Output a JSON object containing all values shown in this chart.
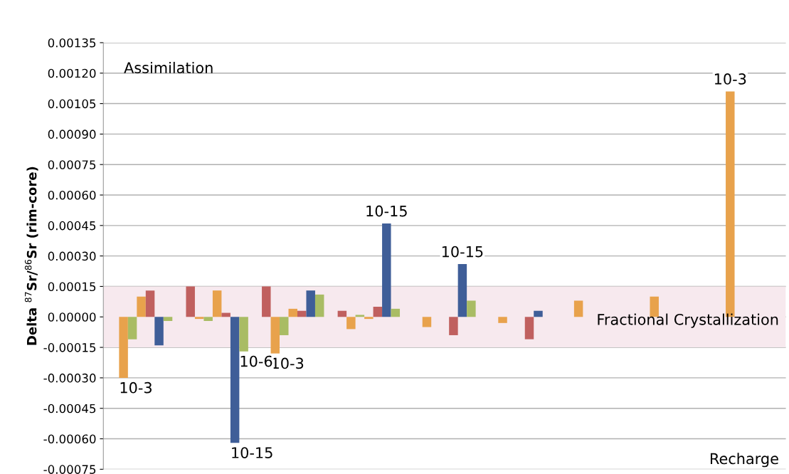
{
  "chart_data": {
    "type": "bar",
    "ylabel": "Delta $^{87}$Sr/$^{86}$Sr (rim-core)",
    "categories": [
      null,
      null,
      null,
      null,
      null,
      null,
      null,
      null,
      null
    ],
    "series": [
      {
        "color": "#c0605f",
        "values": [
          null,
          0.00015,
          0.00015,
          3e-05,
          null,
          null,
          null,
          null,
          null
        ]
      },
      {
        "color": "#e8a24c",
        "values": [
          -0.0003,
          -1e-05,
          -0.00018,
          -6e-05,
          -5e-05,
          -3e-05,
          8e-05,
          0.0001,
          0.00111
        ],
        "value_labels": [
          "10-3",
          null,
          "10-3",
          null,
          null,
          null,
          null,
          null,
          "10-3"
        ]
      },
      {
        "color": "#a9bc64",
        "values": [
          -0.00011,
          -2e-05,
          -9e-05,
          1e-05,
          null,
          null,
          null,
          null,
          null
        ]
      },
      {
        "color": "#e8a24c",
        "values": [
          0.0001,
          0.00013,
          4e-05,
          -1e-05,
          null,
          null,
          null,
          null,
          null
        ]
      },
      {
        "color": "#c0605f",
        "values": [
          0.00013,
          2e-05,
          3e-05,
          5e-05,
          -9e-05,
          -0.00011,
          null,
          null,
          null
        ]
      },
      {
        "color": "#3f5e98",
        "values": [
          -0.00014,
          -0.00062,
          0.00013,
          0.00046,
          0.00026,
          3e-05,
          null,
          null,
          null
        ],
        "value_labels": [
          null,
          "10-15",
          null,
          "10-15",
          "10-15",
          null,
          null,
          null,
          null
        ]
      },
      {
        "color": "#a9bc64",
        "values": [
          -2e-05,
          -0.00017,
          0.00011,
          4e-05,
          8e-05,
          null,
          null,
          null,
          null
        ],
        "value_labels": [
          null,
          "10-6",
          null,
          null,
          null,
          null,
          null,
          null,
          null
        ]
      }
    ],
    "ylim": [
      -0.00075,
      0.00135
    ],
    "yticks": [
      {
        "value": -0.00075,
        "label": "-0.00075"
      },
      {
        "value": -0.0006,
        "label": "-0.00060"
      },
      {
        "value": -0.00045,
        "label": "-0.00045"
      },
      {
        "value": -0.0003,
        "label": "-0.00030"
      },
      {
        "value": -0.00015,
        "label": "-0.00015"
      },
      {
        "value": 0,
        "label": "0.00000"
      },
      {
        "value": 0.00015,
        "label": "0.00015"
      },
      {
        "value": 0.0003,
        "label": "0.00030"
      },
      {
        "value": 0.00045,
        "label": "0.00045"
      },
      {
        "value": 0.0006,
        "label": "0.00060"
      },
      {
        "value": 0.00075,
        "label": "0.00075"
      },
      {
        "value": 0.0009,
        "label": "0.00090"
      },
      {
        "value": 0.00105,
        "label": "0.00105"
      },
      {
        "value": 0.0012,
        "label": "0.00120"
      },
      {
        "value": 0.00135,
        "label": "0.00135"
      }
    ],
    "bands": [
      {
        "axis": "y",
        "from": -0.00015,
        "to": 0.00015,
        "color": "#f7e9ee"
      }
    ],
    "annotations": [
      "Assimilation",
      "Fractional Crystallization",
      "Recharge"
    ],
    "grid": "y",
    "legend": false
  }
}
